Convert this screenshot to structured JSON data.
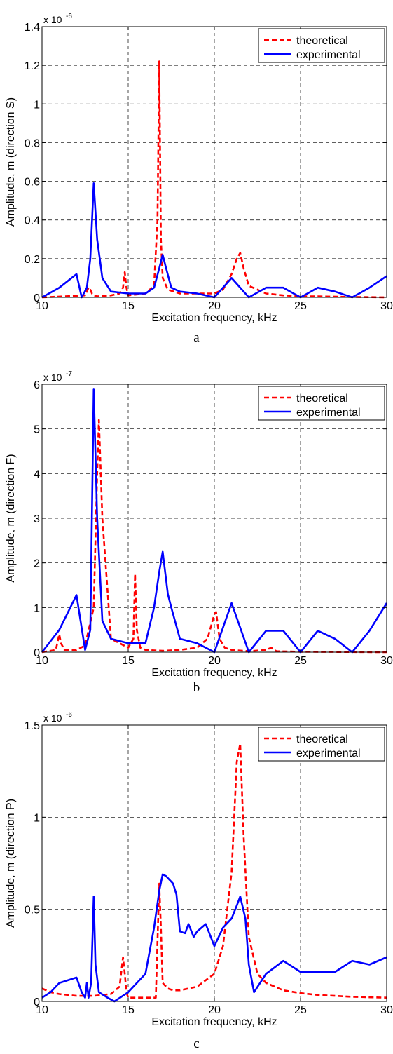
{
  "colors": {
    "theoretical": "#ff0000",
    "experimental": "#0000ff",
    "axis": "#000000",
    "grid": "#000000"
  },
  "captions": [
    "a",
    "b",
    "c"
  ],
  "chart_data": [
    {
      "type": "line",
      "xlabel": "Excitation frequency, kHz",
      "ylabel": "Amplitude, m (direction S)",
      "exponent_label": "x 10",
      "exponent_power": "-6",
      "xlim": [
        10,
        30
      ],
      "ylim": [
        0,
        1.4
      ],
      "xticks": [
        "10",
        "15",
        "20",
        "25",
        "30"
      ],
      "yticks": [
        "0",
        "0.2",
        "0.4",
        "0.6",
        "0.8",
        "1",
        "1.2",
        "1.4"
      ],
      "xtick_values": [
        10,
        15,
        20,
        25,
        30
      ],
      "ytick_values": [
        0,
        0.2,
        0.4,
        0.6,
        0.8,
        1.0,
        1.2,
        1.4
      ],
      "grid": true,
      "legend_position": "top-right",
      "series": [
        {
          "name": "theoretical",
          "style": "dashed",
          "color": "#ff0000",
          "x": [
            10,
            12.5,
            12.7,
            12.8,
            12.9,
            13.0,
            13.2,
            14.0,
            14.5,
            14.7,
            14.8,
            14.9,
            15.0,
            16.0,
            16.5,
            16.7,
            16.8,
            16.9,
            17.0,
            17.3,
            18.0,
            19.0,
            20.0,
            20.5,
            21.0,
            21.3,
            21.5,
            21.7,
            22.0,
            23.0,
            24.0,
            25.0,
            26.0,
            28.0,
            30.0
          ],
          "y": [
            0.0,
            0.01,
            0.05,
            0.04,
            0.02,
            0.01,
            0.005,
            0.01,
            0.02,
            0.05,
            0.13,
            0.05,
            0.01,
            0.02,
            0.06,
            0.4,
            1.22,
            0.3,
            0.1,
            0.04,
            0.02,
            0.02,
            0.02,
            0.04,
            0.12,
            0.2,
            0.23,
            0.15,
            0.06,
            0.02,
            0.01,
            0.005,
            0.005,
            0.002,
            0.0
          ]
        },
        {
          "name": "experimental",
          "style": "solid",
          "color": "#0000ff",
          "x": [
            10,
            11,
            12,
            12.3,
            12.6,
            12.8,
            13.0,
            13.2,
            13.5,
            14,
            15,
            16,
            16.5,
            16.8,
            17.0,
            17.2,
            17.5,
            18,
            19,
            20,
            21,
            21.5,
            22,
            23,
            24,
            25,
            26,
            27,
            28,
            29,
            30
          ],
          "y": [
            0.0,
            0.05,
            0.12,
            0.0,
            0.05,
            0.2,
            0.59,
            0.3,
            0.1,
            0.03,
            0.02,
            0.02,
            0.05,
            0.15,
            0.22,
            0.15,
            0.05,
            0.03,
            0.02,
            0.0,
            0.1,
            0.05,
            0.0,
            0.05,
            0.05,
            0.0,
            0.05,
            0.03,
            0.0,
            0.05,
            0.11
          ]
        }
      ]
    },
    {
      "type": "line",
      "xlabel": "Excitation frequency, kHz",
      "ylabel": "Amplitude, m (direction F)",
      "exponent_label": "x 10",
      "exponent_power": "-7",
      "xlim": [
        10,
        30
      ],
      "ylim": [
        0,
        6
      ],
      "xticks": [
        "10",
        "15",
        "20",
        "25",
        "30"
      ],
      "yticks": [
        "0",
        "1",
        "2",
        "3",
        "4",
        "5",
        "6"
      ],
      "xtick_values": [
        10,
        15,
        20,
        25,
        30
      ],
      "ytick_values": [
        0,
        1,
        2,
        3,
        4,
        5,
        6
      ],
      "grid": true,
      "legend_position": "top-right",
      "series": [
        {
          "name": "theoretical",
          "style": "dashed",
          "color": "#ff0000",
          "x": [
            10,
            10.8,
            11.0,
            11.1,
            11.3,
            12,
            12.5,
            13.0,
            13.2,
            13.3,
            13.5,
            14,
            15,
            15.3,
            15.4,
            15.5,
            15.7,
            16,
            17,
            18,
            19,
            19.6,
            20.0,
            20.1,
            20.3,
            20.6,
            21,
            22,
            23,
            23.3,
            23.6,
            25,
            30
          ],
          "y": [
            0.0,
            0.05,
            0.4,
            0.2,
            0.05,
            0.05,
            0.15,
            1.0,
            4.0,
            5.2,
            3.0,
            0.3,
            0.1,
            0.3,
            1.75,
            0.5,
            0.1,
            0.05,
            0.03,
            0.05,
            0.1,
            0.3,
            0.85,
            0.9,
            0.3,
            0.1,
            0.05,
            0.02,
            0.05,
            0.1,
            0.02,
            0.01,
            0.0
          ]
        },
        {
          "name": "experimental",
          "style": "solid",
          "color": "#0000ff",
          "x": [
            10,
            11,
            12,
            12.5,
            12.8,
            13.0,
            13.2,
            13.5,
            14,
            15,
            16,
            16.5,
            16.8,
            17.0,
            17.3,
            17.5,
            18,
            19,
            20,
            21,
            22,
            23,
            24,
            25,
            26,
            27,
            28,
            29,
            30
          ],
          "y": [
            0.0,
            0.5,
            1.28,
            0.05,
            0.5,
            5.9,
            3.0,
            0.7,
            0.3,
            0.2,
            0.2,
            1.0,
            1.8,
            2.25,
            1.3,
            1.0,
            0.3,
            0.2,
            0.0,
            1.1,
            0.0,
            0.48,
            0.48,
            0.0,
            0.48,
            0.3,
            0.0,
            0.48,
            1.1
          ]
        }
      ]
    },
    {
      "type": "line",
      "xlabel": "Excitation frequency, kHz",
      "ylabel": "Amplitude, m (direction P)",
      "exponent_label": "x 10",
      "exponent_power": "-6",
      "xlim": [
        10,
        30
      ],
      "ylim": [
        0,
        1.5
      ],
      "xticks": [
        "10",
        "15",
        "20",
        "25",
        "30"
      ],
      "yticks": [
        "0",
        "0.5",
        "1",
        "1.5"
      ],
      "xtick_values": [
        10,
        15,
        20,
        25,
        30
      ],
      "ytick_values": [
        0,
        0.5,
        1.0,
        1.5
      ],
      "grid": true,
      "legend_position": "top-right",
      "series": [
        {
          "name": "theoretical",
          "style": "dashed",
          "color": "#ff0000",
          "x": [
            10,
            10.5,
            11,
            12,
            13,
            14,
            14.5,
            14.7,
            14.8,
            14.9,
            15,
            16,
            16.6,
            16.8,
            16.9,
            17.0,
            17.3,
            17.6,
            18,
            19,
            20,
            20.5,
            21.0,
            21.3,
            21.5,
            21.7,
            22.0,
            22.5,
            23,
            24,
            25,
            26,
            28,
            30
          ],
          "y": [
            0.07,
            0.05,
            0.04,
            0.03,
            0.03,
            0.04,
            0.08,
            0.24,
            0.15,
            0.05,
            0.02,
            0.02,
            0.02,
            0.64,
            0.4,
            0.1,
            0.07,
            0.06,
            0.06,
            0.08,
            0.15,
            0.3,
            0.7,
            1.3,
            1.4,
            0.9,
            0.35,
            0.15,
            0.1,
            0.06,
            0.045,
            0.035,
            0.025,
            0.02
          ]
        },
        {
          "name": "experimental",
          "style": "solid",
          "color": "#0000ff",
          "x": [
            10,
            10.5,
            11,
            12,
            12.3,
            12.5,
            12.6,
            12.7,
            12.85,
            13.0,
            13.1,
            13.3,
            13.8,
            14.2,
            15,
            16,
            16.5,
            16.8,
            17.0,
            17.2,
            17.4,
            17.6,
            17.8,
            18.0,
            18.3,
            18.5,
            18.8,
            19.0,
            19.5,
            20.0,
            20.5,
            21.0,
            21.3,
            21.5,
            21.8,
            22.0,
            22.3,
            23,
            24,
            25,
            27,
            28,
            29,
            30
          ],
          "y": [
            0.02,
            0.05,
            0.1,
            0.13,
            0.05,
            0.02,
            0.1,
            0.02,
            0.1,
            0.57,
            0.2,
            0.05,
            0.02,
            0.0,
            0.05,
            0.15,
            0.4,
            0.6,
            0.69,
            0.68,
            0.66,
            0.64,
            0.58,
            0.38,
            0.37,
            0.42,
            0.35,
            0.38,
            0.42,
            0.3,
            0.4,
            0.45,
            0.52,
            0.57,
            0.45,
            0.2,
            0.05,
            0.15,
            0.22,
            0.16,
            0.16,
            0.22,
            0.2,
            0.24
          ]
        }
      ]
    }
  ]
}
